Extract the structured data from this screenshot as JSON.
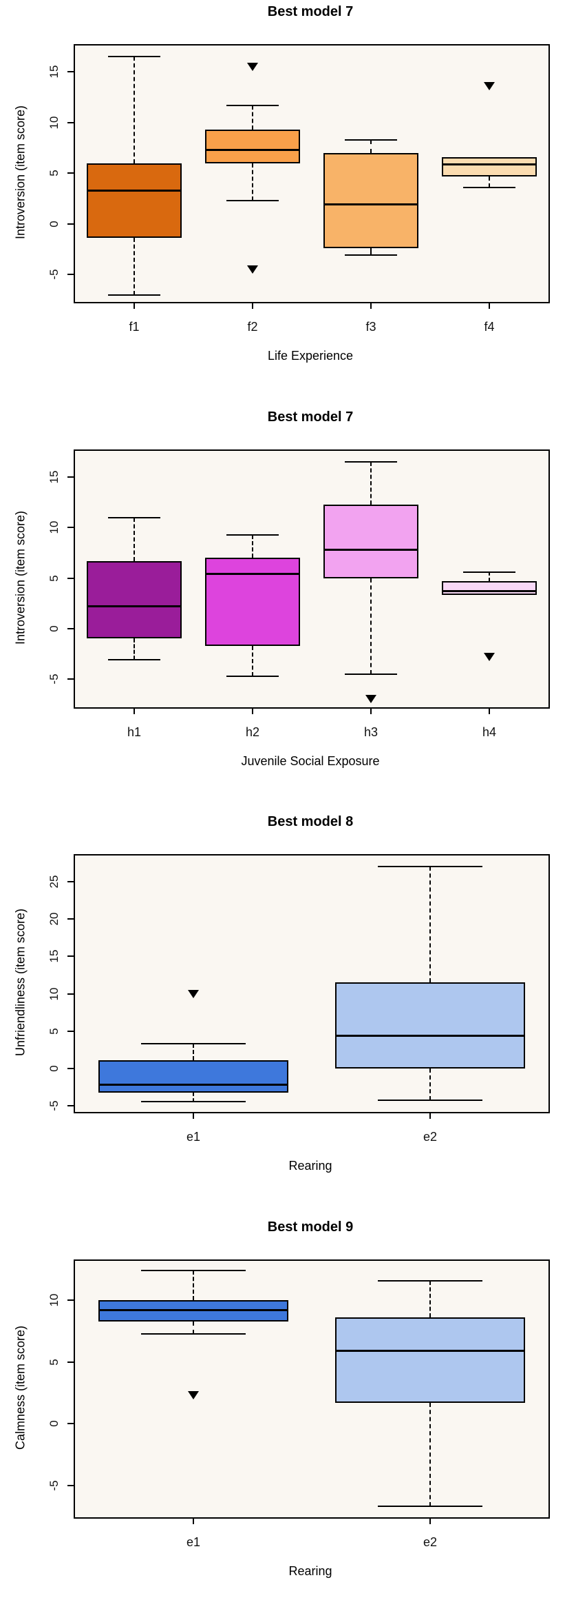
{
  "page": {
    "background": "#ffffff",
    "plot_bg": "#FAF7F2",
    "axis_color": "#000000"
  },
  "chart_data": [
    {
      "type": "boxplot",
      "title": "Best model 7",
      "xlabel": "Life Experience",
      "ylabel": "Introversion (item score)",
      "categories": [
        "f1",
        "f2",
        "f3",
        "f4"
      ],
      "yticks": [
        -5,
        0,
        5,
        10,
        15
      ],
      "ylim": [
        -7.7,
        17.6
      ],
      "grid": false,
      "boxes": [
        {
          "label": "f1",
          "color": "#D9690F",
          "whisker_low": -7.0,
          "q1": -1.4,
          "median": 3.3,
          "q3": 6.0,
          "whisker_high": 16.5,
          "outliers": []
        },
        {
          "label": "f2",
          "color": "#F9A04A",
          "whisker_low": 2.3,
          "q1": 6.0,
          "median": 7.3,
          "q3": 9.3,
          "whisker_high": 11.7,
          "outliers": [
            15.5,
            -4.5
          ]
        },
        {
          "label": "f3",
          "color": "#F8B368",
          "whisker_low": -3.1,
          "q1": -2.4,
          "median": 1.9,
          "q3": 7.0,
          "whisker_high": 8.3,
          "outliers": []
        },
        {
          "label": "f4",
          "color": "#FBDCB0",
          "whisker_low": 3.6,
          "q1": 4.7,
          "median": 5.9,
          "q3": 6.6,
          "whisker_high": 6.6,
          "outliers": [
            13.6
          ]
        }
      ]
    },
    {
      "type": "boxplot",
      "title": "Best model 7",
      "xlabel": "Juvenile Social Exposure",
      "ylabel": "Introversion (item score)",
      "categories": [
        "h1",
        "h2",
        "h3",
        "h4"
      ],
      "yticks": [
        -5,
        0,
        5,
        10,
        15
      ],
      "ylim": [
        -7.8,
        17.6
      ],
      "grid": false,
      "boxes": [
        {
          "label": "h1",
          "color": "#9A1D9A",
          "whisker_low": -3.1,
          "q1": -1.0,
          "median": 2.2,
          "q3": 6.7,
          "whisker_high": 11.0,
          "outliers": []
        },
        {
          "label": "h2",
          "color": "#DD44DD",
          "whisker_low": -4.7,
          "q1": -1.7,
          "median": 5.4,
          "q3": 7.0,
          "whisker_high": 9.3,
          "outliers": []
        },
        {
          "label": "h3",
          "color": "#F2A3F0",
          "whisker_low": -4.5,
          "q1": 5.0,
          "median": 7.8,
          "q3": 12.3,
          "whisker_high": 16.5,
          "outliers": [
            -7.0
          ]
        },
        {
          "label": "h4",
          "color": "#F8D8F6",
          "whisker_low": 3.3,
          "q1": 3.3,
          "median": 3.7,
          "q3": 4.7,
          "whisker_high": 5.6,
          "outliers": [
            -2.8
          ]
        }
      ]
    },
    {
      "type": "boxplot",
      "title": "Best model 8",
      "xlabel": "Rearing",
      "ylabel": "Unfriendliness (item score)",
      "categories": [
        "e1",
        "e2"
      ],
      "yticks": [
        -5,
        0,
        5,
        10,
        15,
        20,
        25
      ],
      "ylim": [
        -5.8,
        28.5
      ],
      "grid": false,
      "boxes": [
        {
          "label": "e1",
          "color": "#3E78DC",
          "whisker_low": -4.4,
          "q1": -3.2,
          "median": -2.2,
          "q3": 1.1,
          "whisker_high": 3.3,
          "outliers": [
            10.0
          ]
        },
        {
          "label": "e2",
          "color": "#AEC7EF",
          "whisker_low": -4.2,
          "q1": 0.0,
          "median": 4.4,
          "q3": 11.5,
          "whisker_high": 27.0,
          "outliers": []
        }
      ]
    },
    {
      "type": "boxplot",
      "title": "Best model 9",
      "xlabel": "Rearing",
      "ylabel": "Calmness (item score)",
      "categories": [
        "e1",
        "e2"
      ],
      "yticks": [
        -5,
        0,
        5,
        10
      ],
      "ylim": [
        -7.6,
        13.2
      ],
      "grid": false,
      "boxes": [
        {
          "label": "e1",
          "color": "#3E78DC",
          "whisker_low": 7.3,
          "q1": 8.3,
          "median": 9.2,
          "q3": 10.0,
          "whisker_high": 12.4,
          "outliers": [
            2.3
          ]
        },
        {
          "label": "e2",
          "color": "#AEC7EF",
          "whisker_low": -6.7,
          "q1": 1.7,
          "median": 5.9,
          "q3": 8.6,
          "whisker_high": 11.6,
          "outliers": []
        }
      ]
    }
  ]
}
